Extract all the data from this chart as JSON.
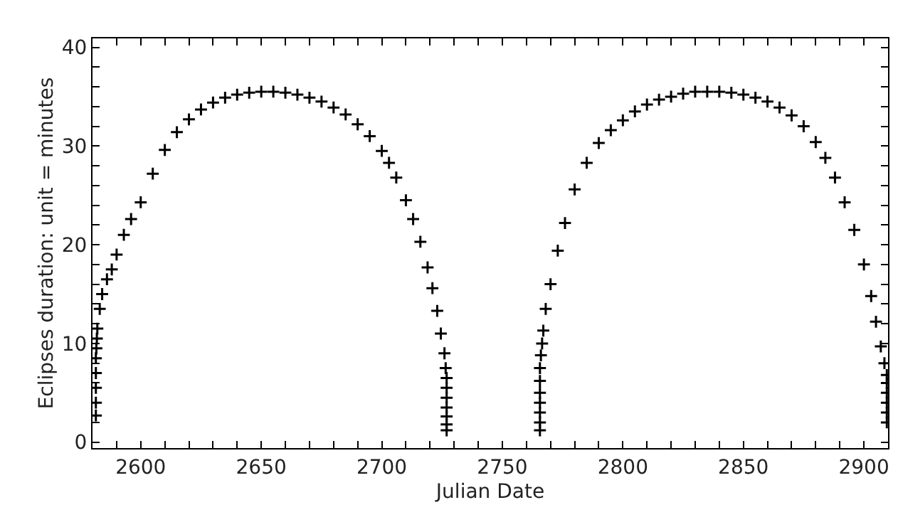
{
  "chart_data": {
    "type": "scatter",
    "xlabel": "Julian Date",
    "ylabel": "Eclipses duration: unit = minutes",
    "x": [
      2581.4,
      2581.4,
      2581.4,
      2581.4,
      2581.4,
      2581.6,
      2581.8,
      2582,
      2583,
      2584,
      2586,
      2588,
      2590,
      2593,
      2596,
      2600,
      2605,
      2610,
      2615,
      2620,
      2625,
      2630,
      2635,
      2640,
      2645,
      2650,
      2655,
      2660,
      2665,
      2670,
      2675,
      2680,
      2685,
      2690,
      2695,
      2700,
      2703,
      2706,
      2710,
      2713,
      2716,
      2719,
      2721,
      2723,
      2724.5,
      2726,
      2726.5,
      2726.9,
      2726.9,
      2726.9,
      2726.9,
      2726.9,
      2726.9,
      2726.9,
      2765.6,
      2765.6,
      2765.6,
      2765.6,
      2765.6,
      2765.6,
      2765.6,
      2766,
      2766.5,
      2767,
      2768,
      2770,
      2773,
      2776,
      2780,
      2785,
      2790,
      2795,
      2800,
      2805,
      2810,
      2815,
      2820,
      2825,
      2830,
      2835,
      2840,
      2845,
      2850,
      2855,
      2860,
      2865,
      2870,
      2875,
      2880,
      2884,
      2888,
      2892,
      2896,
      2900,
      2903,
      2905,
      2907,
      2908.5,
      2909.5,
      2909.5,
      2909.5,
      2909.5,
      2909.5,
      2909.5
    ],
    "series": [
      {
        "color": "#000000",
        "values": [
          2.7,
          4,
          5.5,
          7,
          8.5,
          9.5,
          10.5,
          11.5,
          13.5,
          15,
          16.5,
          17.5,
          19,
          21,
          22.6,
          24.3,
          27.2,
          29.6,
          31.4,
          32.7,
          33.7,
          34.4,
          34.9,
          35.2,
          35.4,
          35.5,
          35.5,
          35.4,
          35.2,
          34.9,
          34.5,
          33.9,
          33.2,
          32.2,
          31,
          29.5,
          28.3,
          26.8,
          24.5,
          22.6,
          20.3,
          17.7,
          15.6,
          13.3,
          11,
          9,
          7.5,
          6.5,
          5.5,
          4.5,
          3.5,
          2.6,
          1.8,
          1.2,
          1.2,
          2,
          3,
          4,
          5,
          6.2,
          7.5,
          8.8,
          10,
          11.3,
          13.5,
          16,
          19.4,
          22.2,
          25.6,
          28.3,
          30.3,
          31.6,
          32.6,
          33.5,
          34.2,
          34.7,
          35,
          35.3,
          35.5,
          35.5,
          35.5,
          35.4,
          35.2,
          34.9,
          34.5,
          33.9,
          33.1,
          32,
          30.4,
          28.8,
          26.8,
          24.3,
          21.5,
          18,
          14.8,
          12.2,
          9.7,
          8,
          6.8,
          6,
          5,
          4,
          3,
          2
        ]
      }
    ],
    "xlim": [
      2580,
      2910
    ],
    "ylim": [
      -0.6,
      40.9
    ],
    "xticks": [
      {
        "value": 2580,
        "label": null
      },
      {
        "value": 2590,
        "label": null
      },
      2600,
      {
        "value": 2610,
        "label": null
      },
      {
        "value": 2620,
        "label": null
      },
      {
        "value": 2630,
        "label": null
      },
      {
        "value": 2640,
        "label": null
      },
      2650,
      {
        "value": 2660,
        "label": null
      },
      {
        "value": 2670,
        "label": null
      },
      {
        "value": 2680,
        "label": null
      },
      {
        "value": 2690,
        "label": null
      },
      2700,
      {
        "value": 2710,
        "label": null
      },
      {
        "value": 2720,
        "label": null
      },
      {
        "value": 2730,
        "label": null
      },
      {
        "value": 2740,
        "label": null
      },
      2750,
      {
        "value": 2760,
        "label": null
      },
      {
        "value": 2770,
        "label": null
      },
      {
        "value": 2780,
        "label": null
      },
      {
        "value": 2790,
        "label": null
      },
      2800,
      {
        "value": 2810,
        "label": null
      },
      {
        "value": 2820,
        "label": null
      },
      {
        "value": 2830,
        "label": null
      },
      {
        "value": 2840,
        "label": null
      },
      2850,
      {
        "value": 2860,
        "label": null
      },
      {
        "value": 2870,
        "label": null
      },
      {
        "value": 2880,
        "label": null
      },
      {
        "value": 2890,
        "label": null
      },
      2900
    ],
    "yticks": [
      0,
      {
        "value": 2,
        "label": null
      },
      {
        "value": 4,
        "label": null
      },
      {
        "value": 6,
        "label": null
      },
      {
        "value": 8,
        "label": null
      },
      10,
      {
        "value": 12,
        "label": null
      },
      {
        "value": 14,
        "label": null
      },
      {
        "value": 16,
        "label": null
      },
      {
        "value": 18,
        "label": null
      },
      20,
      {
        "value": 22,
        "label": null
      },
      {
        "value": 24,
        "label": null
      },
      {
        "value": 26,
        "label": null
      },
      {
        "value": 28,
        "label": null
      },
      30,
      {
        "value": 32,
        "label": null
      },
      {
        "value": 34,
        "label": null
      },
      {
        "value": 36,
        "label": null
      },
      {
        "value": 38,
        "label": null
      },
      40
    ],
    "marker": "cross"
  }
}
